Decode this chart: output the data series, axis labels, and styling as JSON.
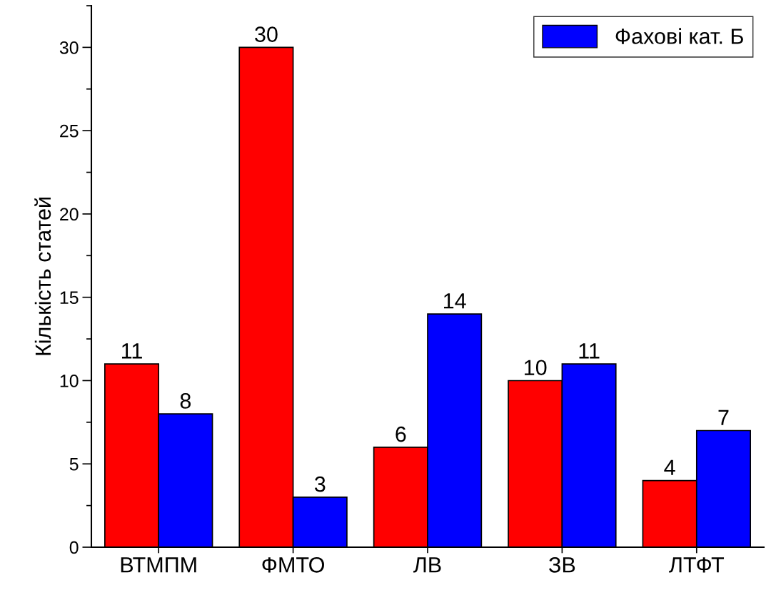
{
  "chart_data": {
    "type": "bar",
    "ylabel": "Кількість статей",
    "categories": [
      "ВТМПМ",
      "ФМТО",
      "ЛВ",
      "ЗВ",
      "ЛТФТ"
    ],
    "series": [
      {
        "color": "#ff0000",
        "values": [
          11,
          30,
          6,
          10,
          4
        ]
      },
      {
        "name": "Фахові кат. Б",
        "color": "#0000ff",
        "values": [
          8,
          3,
          14,
          11,
          7
        ]
      }
    ],
    "ylim": [
      0,
      32.5
    ],
    "yticks": [
      0,
      5,
      10,
      15,
      20,
      25,
      30
    ],
    "data_labels": true,
    "legend": "top right",
    "grid": false
  }
}
